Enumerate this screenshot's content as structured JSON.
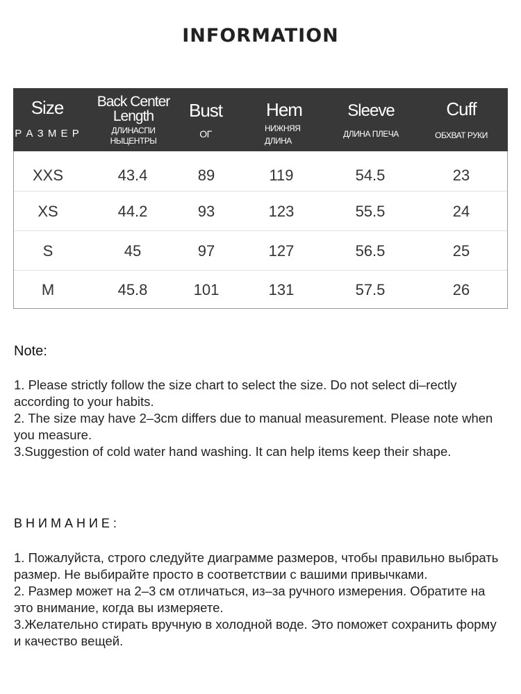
{
  "title": "INFORMATION",
  "table": {
    "headers": [
      {
        "en": "Size",
        "ru": "Р А З М Е Р"
      },
      {
        "en": "Back Center Length",
        "ru": "ДЛИНАСПИ НЫЦЕНТРЫ"
      },
      {
        "en": "Bust",
        "ru": "ОГ"
      },
      {
        "en": "Hem",
        "ru": "НИЖНЯЯ ДЛИНА"
      },
      {
        "en": "Sleeve",
        "ru": "ДЛИНА ПЛЕЧА"
      },
      {
        "en": "Cuff",
        "ru": "ОБХВАТ РУКИ"
      }
    ],
    "rows": [
      [
        "XXS",
        "43.4",
        "89",
        "119",
        "54.5",
        "23"
      ],
      [
        "XS",
        "44.2",
        "93",
        "123",
        "55.5",
        "24"
      ],
      [
        "S",
        "45",
        "97",
        "127",
        "56.5",
        "25"
      ],
      [
        "M",
        "45.8",
        "101",
        "131",
        "57.5",
        "26"
      ]
    ]
  },
  "note_en": {
    "heading": "Note:",
    "items": [
      "1. Please strictly follow the size chart  to select the size. Do not select di–rectly according to your habits.",
      "2. The size may have 2–3cm differs due to manual measurement. Please note when you measure.",
      "3.Suggestion of cold water hand washing. It can help items keep their shape."
    ]
  },
  "note_ru": {
    "heading": "В Н И М А Н И Е :",
    "items": [
      "1. Пожалуйста, строго следуйте диаграмме размеров, чтобы правильно выбрать размер. Не выбирайте просто в соответствии с вашими привычками.",
      "2. Размер может на 2–3 см отличаться, из–за ручного измерения. Обратите на это внимание, когда вы измеряете.",
      "3.Желательно стирать вручную в холодной воде. Это поможет сохранить форму и качество вещей."
    ]
  }
}
